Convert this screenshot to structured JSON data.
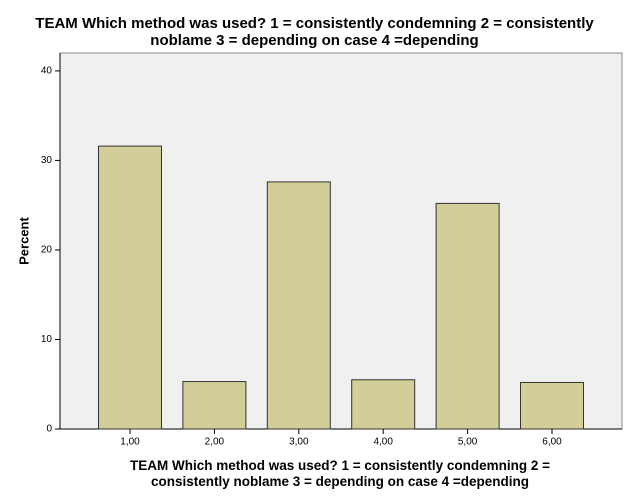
{
  "chart_data": {
    "type": "bar",
    "title": "TEAM Which method was used?  1 = consistently condemning  2 = consistently noblame  3 = depending on case  4 =depending",
    "x_label": "TEAM Which method was used?  1 = consistently condemning  2 = consistently noblame  3 = depending on case  4 =depending",
    "y_label": "Percent",
    "categories": [
      "1,00",
      "2,00",
      "3,00",
      "4,00",
      "5,00",
      "6,00"
    ],
    "values": [
      31.6,
      5.3,
      27.6,
      5.5,
      25.2,
      5.2
    ],
    "color": "#d3ce97",
    "ylim": [
      0,
      42
    ],
    "yticks": [
      0,
      10,
      20,
      30,
      40
    ],
    "grid": false
  }
}
